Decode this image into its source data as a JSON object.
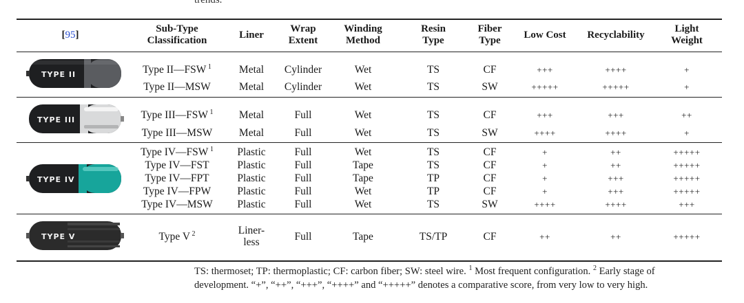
{
  "top_fragment": "trends.",
  "header": {
    "citation": "95",
    "columns": [
      "Sub-Type\nClassification",
      "Liner",
      "Wrap\nExtent",
      "Winding\nMethod",
      "Resin\nType",
      "Fiber\nType",
      "Low Cost",
      "Recyclability",
      "Light\nWeight"
    ]
  },
  "groups": [
    {
      "image_label": "TYPE II",
      "rows": [
        {
          "subtype": "Type II—FSW",
          "note": "1",
          "liner": "Metal",
          "wrap": "Cylinder",
          "winding": "Wet",
          "resin": "TS",
          "fiber": "CF",
          "cost": "+++",
          "recyc": "++++",
          "weight": "+"
        },
        {
          "subtype": "Type II—MSW",
          "note": "",
          "liner": "Metal",
          "wrap": "Cylinder",
          "winding": "Wet",
          "resin": "TS",
          "fiber": "SW",
          "cost": "+++++",
          "recyc": "+++++",
          "weight": "+"
        }
      ]
    },
    {
      "image_label": "TYPE III",
      "rows": [
        {
          "subtype": "Type III—FSW",
          "note": "1",
          "liner": "Metal",
          "wrap": "Full",
          "winding": "Wet",
          "resin": "TS",
          "fiber": "CF",
          "cost": "+++",
          "recyc": "+++",
          "weight": "++"
        },
        {
          "subtype": "Type III—MSW",
          "note": "",
          "liner": "Metal",
          "wrap": "Full",
          "winding": "Wet",
          "resin": "TS",
          "fiber": "SW",
          "cost": "++++",
          "recyc": "++++",
          "weight": "+"
        }
      ]
    },
    {
      "image_label": "TYPE IV",
      "rows": [
        {
          "subtype": "Type IV—FSW",
          "note": "1",
          "liner": "Plastic",
          "wrap": "Full",
          "winding": "Wet",
          "resin": "TS",
          "fiber": "CF",
          "cost": "+",
          "recyc": "++",
          "weight": "+++++"
        },
        {
          "subtype": "Type IV—FST",
          "note": "",
          "liner": "Plastic",
          "wrap": "Full",
          "winding": "Tape",
          "resin": "TS",
          "fiber": "CF",
          "cost": "+",
          "recyc": "++",
          "weight": "+++++"
        },
        {
          "subtype": "Type IV—FPT",
          "note": "",
          "liner": "Plastic",
          "wrap": "Full",
          "winding": "Tape",
          "resin": "TP",
          "fiber": "CF",
          "cost": "+",
          "recyc": "+++",
          "weight": "+++++"
        },
        {
          "subtype": "Type IV—FPW",
          "note": "",
          "liner": "Plastic",
          "wrap": "Full",
          "winding": "Wet",
          "resin": "TP",
          "fiber": "CF",
          "cost": "+",
          "recyc": "+++",
          "weight": "+++++"
        },
        {
          "subtype": "Type IV—MSW",
          "note": "",
          "liner": "Plastic",
          "wrap": "Full",
          "winding": "Wet",
          "resin": "TS",
          "fiber": "SW",
          "cost": "++++",
          "recyc": "++++",
          "weight": "+++"
        }
      ]
    },
    {
      "image_label": "TYPE V",
      "rows": [
        {
          "subtype": "Type V",
          "note": "2",
          "liner": "Liner-\nless",
          "wrap": "Full",
          "winding": "Tape",
          "resin": "TS/TP",
          "fiber": "CF",
          "cost": "++",
          "recyc": "++",
          "weight": "+++++"
        }
      ]
    }
  ],
  "footer": {
    "line1": "TS: thermoset; TP: thermoplastic; CF: carbon fiber; SW: steel wire.",
    "note1_mark": "1",
    "note1_text": "Most frequent configuration.",
    "note2_mark": "2",
    "note2_text": "Early stage of",
    "line2": "development. “+”, “++”, “+++”, “++++” and “+++++” denotes a comparative score, from very low to very high."
  },
  "colors": {
    "citation": "#2a4fd0",
    "tank_dark": "#1e1f21",
    "type2_accent": "#5a5c60",
    "type3_accent": "#d9dadb",
    "type4_accent": "#17a59b",
    "type5_body": "#2b2b2b"
  }
}
